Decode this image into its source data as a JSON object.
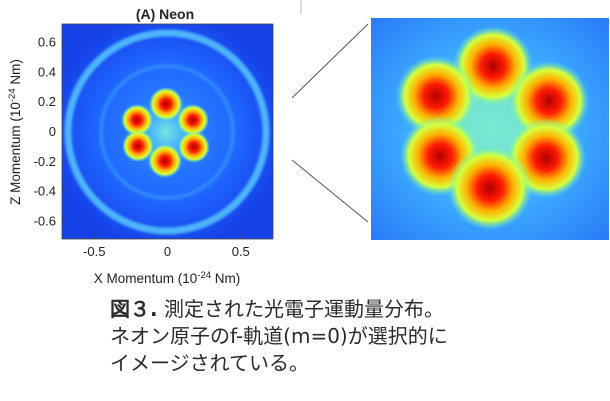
{
  "chart_data": [
    {
      "type": "heatmap",
      "title": "(A) Neon",
      "xlabel": "X Momentum (10",
      "xlabel_exp": "-24",
      "xlabel_unit": " Nm)",
      "ylabel": "Z Momentum (10",
      "ylabel_exp": "-24",
      "ylabel_unit": " Nm)",
      "xlim": [
        -0.72,
        0.72
      ],
      "ylim": [
        -0.72,
        0.72
      ],
      "xticks": [
        -0.5,
        0,
        0.5
      ],
      "xtick_labels": [
        "-0.5",
        "0",
        "0.5"
      ],
      "yticks": [
        0.6,
        0.4,
        0.2,
        0,
        -0.2,
        -0.4,
        -0.6
      ],
      "ytick_labels": [
        "0.6",
        "0.4",
        "0.2",
        "0",
        "-0.2",
        "-0.4",
        "-0.6"
      ],
      "colormap": "jet"
    },
    {
      "type": "heatmap",
      "role": "magnified inset of central lobes",
      "colormap": "jet"
    }
  ],
  "caption": {
    "figure_label": "図３.",
    "line1": "測定された光電子運動量分布。",
    "line2": "ネオン原子のf-軌道(m=0)が選択的に",
    "line3": "イメージされている。"
  },
  "colors": {
    "jet_blue": "#1e5bff",
    "jet_cyan": "#58c8ff",
    "jet_red": "#e00000",
    "connector": "#555555"
  }
}
